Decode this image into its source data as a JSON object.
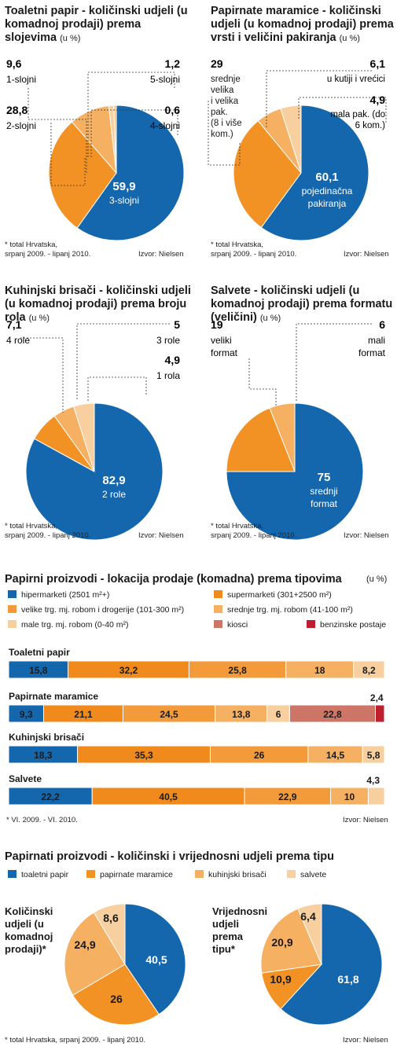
{
  "colors": {
    "blue": "#1467ad",
    "orange": "#f39224",
    "light_orange": "#f5b062",
    "peach": "#f8cf9e",
    "rose": "#cd7667",
    "red": "#be1e2d",
    "line": "#333333"
  },
  "pie_note": [
    "* total Hrvatska,",
    "srpanj 2009. - lipanj 2010."
  ],
  "source": "Izvor: Nielsen",
  "chart_data": [
    {
      "id": "toaletni",
      "type": "pie",
      "title": "Toaletni papir - količinski udjeli (u komadnoj prodaji) prema slojevima",
      "unit": "(u %)",
      "slices": [
        {
          "value": 59.9,
          "value_label": "59,9",
          "label": "3-slojni",
          "color": "#1467ad"
        },
        {
          "value": 28.8,
          "value_label": "28,8",
          "label": "2-slojni",
          "color": "#f39224"
        },
        {
          "value": 9.6,
          "value_label": "9,6",
          "label": "1-slojni",
          "color": "#f5b062"
        },
        {
          "value": 1.2,
          "value_label": "1,2",
          "label": "5-slojni",
          "color": "#f8cf9e"
        },
        {
          "value": 0.6,
          "value_label": "0,6",
          "label": "4-slojni",
          "color": "#f3c089"
        }
      ]
    },
    {
      "id": "maramice",
      "type": "pie",
      "title": "Papirnate maramice - količinski udjeli (u komadnoj prodaji) prema vrsti i veličini pakiranja",
      "unit": "(u %)",
      "slices": [
        {
          "value": 60.1,
          "value_label": "60,1",
          "label": "pojedinačna pakiranja",
          "color": "#1467ad"
        },
        {
          "value": 29,
          "value_label": "29",
          "label": "srednje velika i velika pak. (8 i više kom.)",
          "color": "#f39224"
        },
        {
          "value": 6.1,
          "value_label": "6,1",
          "label": "u kutiji i vrećici",
          "color": "#f5b062"
        },
        {
          "value": 4.9,
          "value_label": "4,9",
          "label": "mala pak. (do 6 kom.)",
          "color": "#f8cf9e"
        }
      ]
    },
    {
      "id": "brisaci",
      "type": "pie",
      "title": "Kuhinjski brisači - količinski udjeli (u komadnoj prodaji) prema broju rola",
      "unit": "(u %)",
      "slices": [
        {
          "value": 82.9,
          "value_label": "82,9",
          "label": "2 role",
          "color": "#1467ad"
        },
        {
          "value": 7.1,
          "value_label": "7,1",
          "label": "4 role",
          "color": "#f39224"
        },
        {
          "value": 5,
          "value_label": "5",
          "label": "3 role",
          "color": "#f5b062"
        },
        {
          "value": 4.9,
          "value_label": "4,9",
          "label": "1 rola",
          "color": "#f8cf9e"
        }
      ]
    },
    {
      "id": "salvete",
      "type": "pie",
      "title": "Salvete - količinski udjeli (u komadnoj prodaji) prema formatu (veličini)",
      "unit": "(u %)",
      "slices": [
        {
          "value": 75,
          "value_label": "75",
          "label": "srednji format",
          "color": "#1467ad"
        },
        {
          "value": 19,
          "value_label": "19",
          "label": "veliki format",
          "color": "#f39224"
        },
        {
          "value": 6,
          "value_label": "6",
          "label": "mali format",
          "color": "#f5b062"
        }
      ]
    },
    {
      "id": "lokacija",
      "type": "bar",
      "orientation": "horizontal-stacked",
      "title": "Papirni proizvodi - lokacija prodaje (komadna) prema tipovima",
      "unit": "(u %)",
      "note": "* VI. 2009. - VI. 2010.",
      "series": [
        {
          "name": "hipermarketi (2501 m²+)",
          "color": "#1467ad"
        },
        {
          "name": "supermarketi (301+2500 m²)",
          "color": "#f08a1c"
        },
        {
          "name": "velike trg. mj. robom i drogerije (101-300 m²)",
          "color": "#f39b3a"
        },
        {
          "name": "srednje trg. mj. robom (41-100 m²)",
          "color": "#f5b062"
        },
        {
          "name": "male trg. mj. robom (0-40 m²)",
          "color": "#f8cf9e"
        },
        {
          "name": "kiosci",
          "color": "#cd7667"
        },
        {
          "name": "benzinske postaje",
          "color": "#be1e2d"
        }
      ],
      "rows": [
        {
          "category": "Toaletni papir",
          "segments": [
            {
              "value": 15.8,
              "label": "15,8",
              "series": 0
            },
            {
              "value": 32.2,
              "label": "32,2",
              "series": 1
            },
            {
              "value": 25.8,
              "label": "25,8",
              "series": 2
            },
            {
              "value": 18,
              "label": "18",
              "series": 3
            },
            {
              "value": 8.2,
              "label": "8,2",
              "series": 4
            }
          ]
        },
        {
          "category": "Papirnate maramice",
          "segments": [
            {
              "value": 9.3,
              "label": "9,3",
              "series": 0
            },
            {
              "value": 21.1,
              "label": "21,1",
              "series": 1
            },
            {
              "value": 24.5,
              "label": "24,5",
              "series": 2
            },
            {
              "value": 13.8,
              "label": "13,8",
              "series": 3
            },
            {
              "value": 6,
              "label": "6",
              "series": 4
            },
            {
              "value": 22.8,
              "label": "22,8",
              "series": 5
            },
            {
              "value": 2.4,
              "label": "2,4",
              "series": 6,
              "outside": true
            }
          ]
        },
        {
          "category": "Kuhinjski brisači",
          "segments": [
            {
              "value": 18.3,
              "label": "18,3",
              "series": 0
            },
            {
              "value": 35.3,
              "label": "35,3",
              "series": 1
            },
            {
              "value": 26,
              "label": "26",
              "series": 2
            },
            {
              "value": 14.5,
              "label": "14,5",
              "series": 3
            },
            {
              "value": 5.8,
              "label": "5,8",
              "series": 4
            }
          ]
        },
        {
          "category": "Salvete",
          "segments": [
            {
              "value": 22.2,
              "label": "22,2",
              "series": 0
            },
            {
              "value": 40.5,
              "label": "40,5",
              "series": 1
            },
            {
              "value": 22.9,
              "label": "22,9",
              "series": 2
            },
            {
              "value": 10,
              "label": "10",
              "series": 3
            },
            {
              "value": 4.3,
              "label": "4,3",
              "series": 4,
              "outside": true
            }
          ]
        }
      ]
    },
    {
      "id": "kolicinski",
      "type": "pie",
      "group_title": "Papirnati proizvodi - količinski i vrijednosni udjeli prema tipu",
      "title": "Količinski udjeli (u komadnoj prodaji)*",
      "legend": [
        {
          "name": "toaletni papir",
          "color": "#1467ad"
        },
        {
          "name": "papirnate maramice",
          "color": "#f39224"
        },
        {
          "name": "kuhinjski brisači",
          "color": "#f5b062"
        },
        {
          "name": "salvete",
          "color": "#f8cf9e"
        }
      ],
      "slices": [
        {
          "value": 40.5,
          "value_label": "40,5",
          "color": "#1467ad"
        },
        {
          "value": 26,
          "value_label": "26",
          "color": "#f39224"
        },
        {
          "value": 24.9,
          "value_label": "24,9",
          "color": "#f5b062"
        },
        {
          "value": 8.6,
          "value_label": "8,6",
          "color": "#f8cf9e"
        }
      ]
    },
    {
      "id": "vrijednosni",
      "type": "pie",
      "title": "Vrijednosni udjeli prema tipu*",
      "slices": [
        {
          "value": 61.8,
          "value_label": "61,8",
          "color": "#1467ad"
        },
        {
          "value": 10.9,
          "value_label": "10,9",
          "color": "#f39224"
        },
        {
          "value": 20.9,
          "value_label": "20,9",
          "color": "#f5b062"
        },
        {
          "value": 6.4,
          "value_label": "6,4",
          "color": "#f8cf9e"
        }
      ]
    }
  ],
  "bottom_note": "* total Hrvatska, srpanj 2009. - lipanj 2010."
}
